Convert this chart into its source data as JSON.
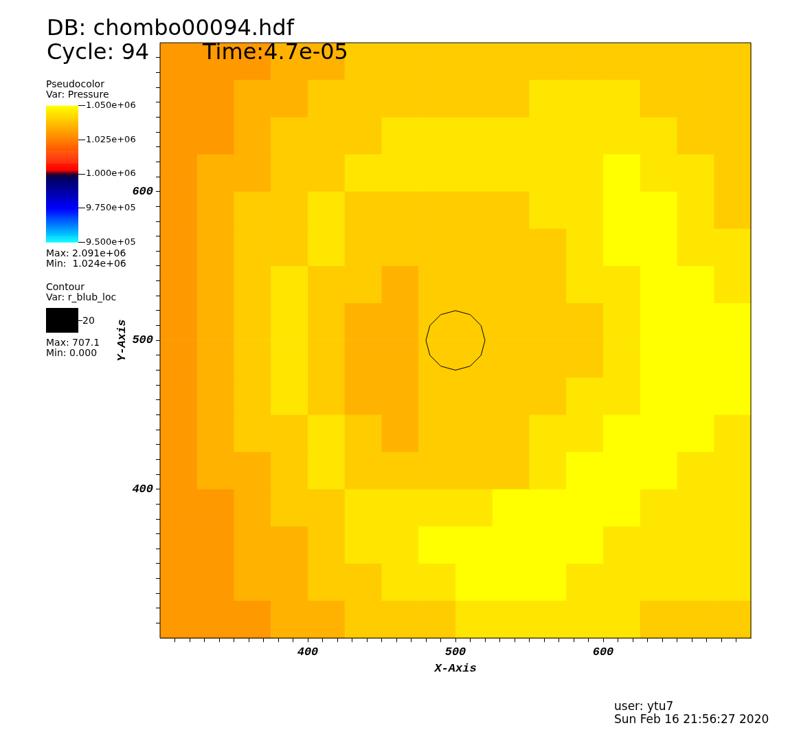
{
  "chart_data": {
    "type": "heatmap",
    "title": "DB: chombo00094.hdf",
    "legend_title": "Pseudocolor",
    "clabel": "Var: Pressure",
    "xlabel": "X-Axis",
    "ylabel": "Y-Axis",
    "annotations": [
      "Cycle: 94",
      "Time:4.7e-05",
      "Max: 2.091e+06",
      "Min:  1.024e+06",
      "Contour",
      "Var: r_blub_loc",
      "Max: 707.1",
      "Min: 0.000",
      "user: ytu7",
      "Sun Feb 16 21:56:27 2020"
    ],
    "x": [
      312.5,
      337.5,
      362.5,
      387.5,
      412.5,
      437.5,
      462.5,
      487.5,
      512.5,
      537.5,
      562.5,
      587.5,
      612.5,
      637.5,
      662.5,
      687.5
    ],
    "y": [
      687.5,
      662.5,
      637.5,
      612.5,
      587.5,
      562.5,
      537.5,
      512.5,
      487.5,
      462.5,
      437.5,
      412.5,
      387.5,
      362.5,
      337.5,
      312.5
    ],
    "cells": [
      [
        1030000,
        1030000,
        1030000,
        1035000,
        1035000,
        1040000,
        1040000,
        1040000,
        1040000,
        1040000,
        1040000,
        1040000,
        1040000,
        1040000,
        1040000,
        1040000
      ],
      [
        1030000,
        1030000,
        1035000,
        1035000,
        1040000,
        1040000,
        1040000,
        1040000,
        1040000,
        1040000,
        1045000,
        1045000,
        1045000,
        1040000,
        1040000,
        1040000
      ],
      [
        1030000,
        1030000,
        1035000,
        1040000,
        1040000,
        1040000,
        1045000,
        1045000,
        1045000,
        1045000,
        1045000,
        1045000,
        1045000,
        1045000,
        1040000,
        1040000
      ],
      [
        1030000,
        1035000,
        1035000,
        1040000,
        1040000,
        1045000,
        1045000,
        1045000,
        1045000,
        1045000,
        1045000,
        1045000,
        1050000,
        1045000,
        1045000,
        1040000
      ],
      [
        1030000,
        1035000,
        1040000,
        1040000,
        1045000,
        1040000,
        1040000,
        1040000,
        1040000,
        1040000,
        1045000,
        1045000,
        1050000,
        1050000,
        1045000,
        1040000
      ],
      [
        1030000,
        1035000,
        1040000,
        1040000,
        1045000,
        1040000,
        1040000,
        1040000,
        1040000,
        1040000,
        1040000,
        1045000,
        1050000,
        1050000,
        1045000,
        1045000
      ],
      [
        1030000,
        1035000,
        1040000,
        1045000,
        1040000,
        1040000,
        1035000,
        1040000,
        1040000,
        1040000,
        1040000,
        1045000,
        1045000,
        1050000,
        1050000,
        1045000
      ],
      [
        1030000,
        1035000,
        1040000,
        1045000,
        1040000,
        1035000,
        1035000,
        1040000,
        1040000,
        1040000,
        1040000,
        1040000,
        1045000,
        1050000,
        1050000,
        1050000
      ],
      [
        1030000,
        1035000,
        1040000,
        1045000,
        1040000,
        1035000,
        1035000,
        1040000,
        1040000,
        1040000,
        1040000,
        1040000,
        1045000,
        1050000,
        1050000,
        1050000
      ],
      [
        1030000,
        1035000,
        1040000,
        1045000,
        1040000,
        1035000,
        1035000,
        1040000,
        1040000,
        1040000,
        1040000,
        1045000,
        1045000,
        1050000,
        1050000,
        1050000
      ],
      [
        1030000,
        1035000,
        1040000,
        1040000,
        1045000,
        1040000,
        1035000,
        1040000,
        1040000,
        1040000,
        1045000,
        1045000,
        1050000,
        1050000,
        1050000,
        1045000
      ],
      [
        1030000,
        1035000,
        1035000,
        1040000,
        1045000,
        1040000,
        1040000,
        1040000,
        1040000,
        1040000,
        1045000,
        1050000,
        1050000,
        1050000,
        1045000,
        1045000
      ],
      [
        1030000,
        1030000,
        1035000,
        1040000,
        1040000,
        1045000,
        1045000,
        1045000,
        1045000,
        1050000,
        1050000,
        1050000,
        1050000,
        1045000,
        1045000,
        1045000
      ],
      [
        1030000,
        1030000,
        1035000,
        1035000,
        1040000,
        1045000,
        1045000,
        1050000,
        1050000,
        1050000,
        1050000,
        1050000,
        1045000,
        1045000,
        1045000,
        1045000
      ],
      [
        1030000,
        1030000,
        1035000,
        1035000,
        1040000,
        1040000,
        1045000,
        1045000,
        1050000,
        1050000,
        1050000,
        1045000,
        1045000,
        1045000,
        1045000,
        1045000
      ],
      [
        1030000,
        1030000,
        1030000,
        1035000,
        1035000,
        1040000,
        1040000,
        1040000,
        1045000,
        1045000,
        1045000,
        1045000,
        1045000,
        1040000,
        1040000,
        1040000
      ]
    ],
    "clim": [
      950000,
      1050000
    ],
    "cticks": [
      {
        "value": 950000,
        "label": "9.500e+05"
      },
      {
        "value": 975000,
        "label": "9.750e+05"
      },
      {
        "value": 1000000,
        "label": "1.000e+06"
      },
      {
        "value": 1025000,
        "label": "1.025e+06"
      },
      {
        "value": 1050000,
        "label": "1.050e+06"
      }
    ],
    "series": [
      {
        "type": "line",
        "name": "20",
        "color": "#000000",
        "x": [
          480,
          482.7,
          490,
          500,
          510,
          517.3,
          520
        ],
        "values": [
          500,
          510,
          517.3,
          520,
          517.3,
          510,
          500
        ]
      },
      {
        "type": "line",
        "color": "#000000",
        "x": [
          480,
          482.7,
          490,
          500,
          510,
          517.3,
          520
        ],
        "values": [
          500,
          490,
          482.7,
          480,
          482.7,
          490,
          500
        ]
      }
    ],
    "marker": "none",
    "legend": "left",
    "grid": false,
    "xlim": [
      300,
      700
    ],
    "ylim": [
      300,
      700
    ],
    "xticks": [
      {
        "value": 310,
        "label": null
      },
      {
        "value": 320,
        "label": null
      },
      {
        "value": 330,
        "label": null
      },
      {
        "value": 340,
        "label": null
      },
      {
        "value": 350,
        "label": null
      },
      {
        "value": 360,
        "label": null
      },
      {
        "value": 370,
        "label": null
      },
      {
        "value": 380,
        "label": null
      },
      {
        "value": 390,
        "label": null
      },
      400,
      {
        "value": 410,
        "label": null
      },
      {
        "value": 420,
        "label": null
      },
      {
        "value": 430,
        "label": null
      },
      {
        "value": 440,
        "label": null
      },
      {
        "value": 450,
        "label": null
      },
      {
        "value": 460,
        "label": null
      },
      {
        "value": 470,
        "label": null
      },
      {
        "value": 480,
        "label": null
      },
      {
        "value": 490,
        "label": null
      },
      500,
      {
        "value": 510,
        "label": null
      },
      {
        "value": 520,
        "label": null
      },
      {
        "value": 530,
        "label": null
      },
      {
        "value": 540,
        "label": null
      },
      {
        "value": 550,
        "label": null
      },
      {
        "value": 560,
        "label": null
      },
      {
        "value": 570,
        "label": null
      },
      {
        "value": 580,
        "label": null
      },
      {
        "value": 590,
        "label": null
      },
      600,
      {
        "value": 610,
        "label": null
      },
      {
        "value": 620,
        "label": null
      },
      {
        "value": 630,
        "label": null
      },
      {
        "value": 640,
        "label": null
      },
      {
        "value": 650,
        "label": null
      },
      {
        "value": 660,
        "label": null
      },
      {
        "value": 670,
        "label": null
      },
      {
        "value": 680,
        "label": null
      },
      {
        "value": 690,
        "label": null
      }
    ],
    "yticks": [
      {
        "value": 310,
        "label": null
      },
      {
        "value": 320,
        "label": null
      },
      {
        "value": 330,
        "label": null
      },
      {
        "value": 340,
        "label": null
      },
      {
        "value": 350,
        "label": null
      },
      {
        "value": 360,
        "label": null
      },
      {
        "value": 370,
        "label": null
      },
      {
        "value": 380,
        "label": null
      },
      {
        "value": 390,
        "label": null
      },
      400,
      {
        "value": 410,
        "label": null
      },
      {
        "value": 420,
        "label": null
      },
      {
        "value": 430,
        "label": null
      },
      {
        "value": 440,
        "label": null
      },
      {
        "value": 450,
        "label": null
      },
      {
        "value": 460,
        "label": null
      },
      {
        "value": 470,
        "label": null
      },
      {
        "value": 480,
        "label": null
      },
      {
        "value": 490,
        "label": null
      },
      500,
      {
        "value": 510,
        "label": null
      },
      {
        "value": 520,
        "label": null
      },
      {
        "value": 530,
        "label": null
      },
      {
        "value": 540,
        "label": null
      },
      {
        "value": 550,
        "label": null
      },
      {
        "value": 560,
        "label": null
      },
      {
        "value": 570,
        "label": null
      },
      {
        "value": 580,
        "label": null
      },
      {
        "value": 590,
        "label": null
      },
      600,
      {
        "value": 610,
        "label": null
      },
      {
        "value": 620,
        "label": null
      },
      {
        "value": 630,
        "label": null
      },
      {
        "value": 640,
        "label": null
      },
      {
        "value": 650,
        "label": null
      },
      {
        "value": 660,
        "label": null
      },
      {
        "value": 670,
        "label": null
      },
      {
        "value": 680,
        "label": null
      },
      {
        "value": 690,
        "label": null
      }
    ]
  }
}
